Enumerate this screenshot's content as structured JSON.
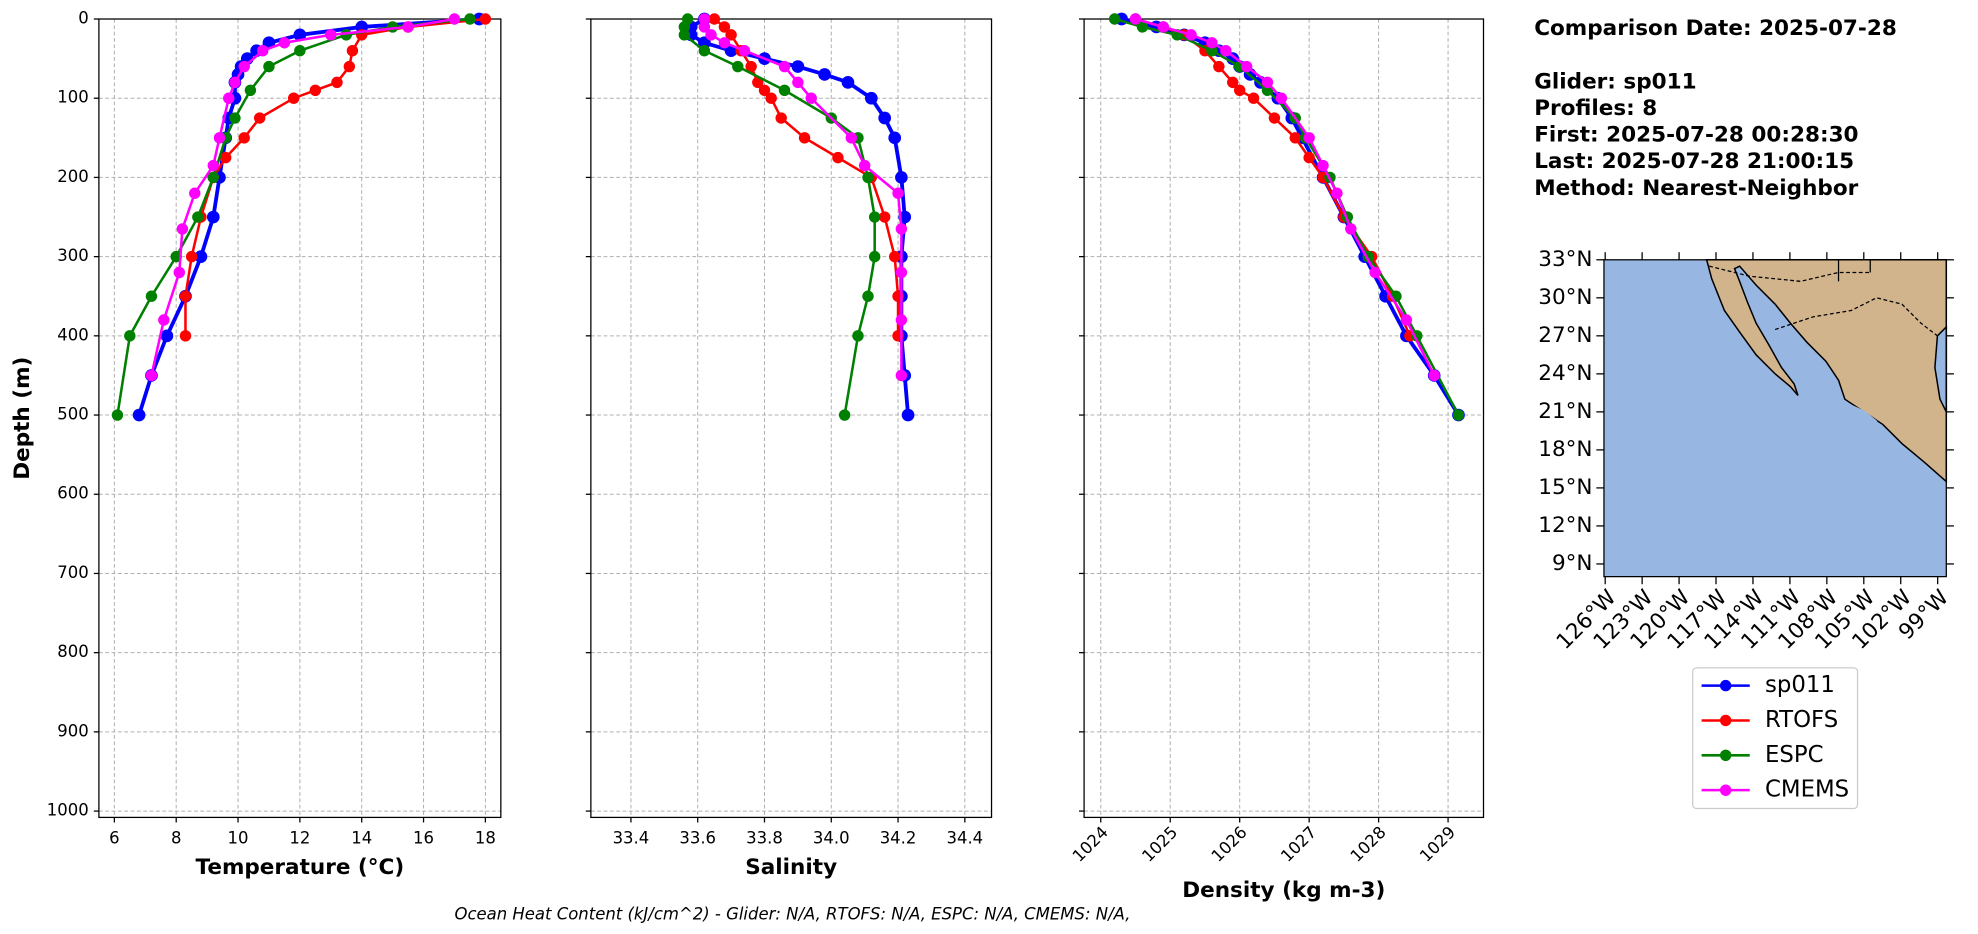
{
  "chart_data": [
    {
      "type": "profile",
      "xlabel": "Temperature (°C)",
      "ylabel": "Depth (m)",
      "xlim": [
        5.5,
        18.5
      ],
      "xticks": [
        6,
        8,
        10,
        12,
        14,
        16,
        18
      ],
      "ylim": [
        1008,
        0
      ],
      "yticks": [
        0,
        100,
        200,
        300,
        400,
        500,
        600,
        700,
        800,
        900,
        1000
      ],
      "grid": true,
      "series": [
        {
          "depth": [
            0,
            10,
            20,
            30,
            40,
            50,
            60,
            70,
            80,
            100,
            125,
            150,
            200,
            250,
            300,
            350,
            400,
            450,
            500
          ],
          "values": [
            17.8,
            14,
            12,
            11,
            10.6,
            10.3,
            10.1,
            10,
            9.9,
            9.9,
            9.7,
            9.6,
            9.4,
            9.2,
            8.8,
            8.3,
            7.7,
            7.2,
            6.8
          ]
        },
        {
          "depth": [
            0,
            10,
            20,
            40,
            60,
            80,
            90,
            100,
            125,
            150,
            175,
            200,
            250,
            300,
            350,
            400
          ],
          "values": [
            18,
            15.5,
            14,
            13.7,
            13.6,
            13.2,
            12.5,
            11.8,
            10.7,
            10.2,
            9.6,
            9.2,
            8.8,
            8.5,
            8.3,
            8.3
          ]
        },
        {
          "depth": [
            0,
            10,
            20,
            40,
            60,
            90,
            125,
            150,
            200,
            250,
            300,
            350,
            400,
            500
          ],
          "values": [
            17.5,
            15,
            13.5,
            12,
            11,
            10.4,
            9.9,
            9.6,
            9.2,
            8.7,
            8,
            7.2,
            6.5,
            6.1
          ]
        },
        {
          "depth": [
            0,
            10,
            20,
            30,
            40,
            60,
            80,
            100,
            150,
            185,
            220,
            265,
            320,
            380,
            450
          ],
          "values": [
            17,
            15.5,
            13,
            11.5,
            10.8,
            10.2,
            9.9,
            9.7,
            9.4,
            9.2,
            8.6,
            8.2,
            8.1,
            7.6,
            7.2
          ]
        }
      ]
    },
    {
      "type": "profile",
      "xlabel": "Salinity",
      "xlim": [
        33.28,
        34.48
      ],
      "xticks": [
        33.4,
        33.6,
        33.8,
        {
          "value": 34,
          "label": "34.0"
        },
        34.2,
        34.4
      ],
      "ylim": [
        1008,
        0
      ],
      "yticks": [
        0,
        100,
        200,
        300,
        400,
        500,
        600,
        700,
        800,
        900,
        1000
      ],
      "grid": true,
      "series": [
        {
          "depth": [
            0,
            10,
            20,
            30,
            40,
            50,
            60,
            70,
            80,
            100,
            125,
            150,
            200,
            250,
            300,
            350,
            400,
            450,
            500
          ],
          "values": [
            33.62,
            33.58,
            33.58,
            33.62,
            33.7,
            33.8,
            33.9,
            33.98,
            34.05,
            34.12,
            34.16,
            34.19,
            34.21,
            34.22,
            34.21,
            34.21,
            34.21,
            34.22,
            34.23
          ]
        },
        {
          "depth": [
            0,
            10,
            20,
            40,
            60,
            80,
            90,
            100,
            125,
            150,
            175,
            200,
            250,
            300,
            350,
            400
          ],
          "values": [
            33.65,
            33.68,
            33.7,
            33.73,
            33.76,
            33.78,
            33.8,
            33.82,
            33.85,
            33.92,
            34.02,
            34.12,
            34.16,
            34.19,
            34.2,
            34.2
          ]
        },
        {
          "depth": [
            0,
            10,
            20,
            40,
            60,
            90,
            125,
            150,
            200,
            250,
            300,
            350,
            400,
            500
          ],
          "values": [
            33.57,
            33.56,
            33.56,
            33.62,
            33.72,
            33.86,
            34.0,
            34.08,
            34.11,
            34.13,
            34.13,
            34.11,
            34.08,
            34.04
          ]
        },
        {
          "depth": [
            0,
            10,
            20,
            30,
            40,
            60,
            80,
            100,
            150,
            185,
            220,
            265,
            320,
            380,
            450
          ],
          "values": [
            33.62,
            33.62,
            33.64,
            33.68,
            33.74,
            33.86,
            33.9,
            33.94,
            34.06,
            34.1,
            34.2,
            34.21,
            34.21,
            34.21,
            34.21
          ]
        }
      ]
    },
    {
      "type": "profile",
      "xlabel": "Density (kg m-3)",
      "xtick_rotation": 45,
      "xlim": [
        1023.76,
        1029.51
      ],
      "xticks": [
        1024,
        1025,
        1026,
        1027,
        1028,
        1029
      ],
      "ylim": [
        1008,
        0
      ],
      "yticks": [
        0,
        100,
        200,
        300,
        400,
        500,
        600,
        700,
        800,
        900,
        1000
      ],
      "grid": true,
      "series": [
        {
          "depth": [
            0,
            10,
            20,
            30,
            40,
            50,
            60,
            70,
            80,
            100,
            125,
            150,
            200,
            250,
            300,
            350,
            400,
            450,
            500
          ],
          "values": [
            1024.3,
            1024.8,
            1025.2,
            1025.5,
            1025.7,
            1025.9,
            1026.0,
            1026.15,
            1026.3,
            1026.55,
            1026.75,
            1026.9,
            1027.2,
            1027.5,
            1027.8,
            1028.1,
            1028.4,
            1028.8,
            1029.15
          ]
        },
        {
          "depth": [
            0,
            10,
            20,
            40,
            60,
            80,
            90,
            100,
            125,
            150,
            175,
            200,
            250,
            300,
            350,
            400
          ],
          "values": [
            1024.5,
            1024.9,
            1025.2,
            1025.5,
            1025.7,
            1025.9,
            1026.0,
            1026.2,
            1026.5,
            1026.8,
            1027.0,
            1027.2,
            1027.5,
            1027.9,
            1028.2,
            1028.45
          ]
        },
        {
          "depth": [
            0,
            10,
            20,
            40,
            60,
            90,
            125,
            150,
            200,
            250,
            300,
            350,
            400,
            500
          ],
          "values": [
            1024.2,
            1024.6,
            1025.1,
            1025.6,
            1026.0,
            1026.4,
            1026.8,
            1026.95,
            1027.3,
            1027.55,
            1027.85,
            1028.25,
            1028.55,
            1029.15
          ]
        },
        {
          "depth": [
            0,
            10,
            20,
            30,
            40,
            60,
            80,
            100,
            150,
            185,
            220,
            265,
            320,
            380,
            450
          ],
          "values": [
            1024.5,
            1024.9,
            1025.3,
            1025.6,
            1025.8,
            1026.1,
            1026.4,
            1026.6,
            1027.0,
            1027.2,
            1027.4,
            1027.6,
            1027.95,
            1028.4,
            1028.8
          ]
        }
      ]
    },
    {
      "type": "map",
      "xlim": [
        -126.1,
        -98.3
      ],
      "ylim": [
        8,
        33
      ],
      "xticks": [
        {
          "value": -126,
          "label": "126°W"
        },
        {
          "value": -123,
          "label": "123°W"
        },
        {
          "value": -120,
          "label": "120°W"
        },
        {
          "value": -117,
          "label": "117°W"
        },
        {
          "value": -114,
          "label": "114°W"
        },
        {
          "value": -111,
          "label": "111°W"
        },
        {
          "value": -108,
          "label": "108°W"
        },
        {
          "value": -105,
          "label": "105°W"
        },
        {
          "value": -102,
          "label": "102°W"
        },
        {
          "value": -99,
          "label": "99°W"
        }
      ],
      "yticks": [
        {
          "value": 33,
          "label": "33°N"
        },
        {
          "value": 30,
          "label": "30°N"
        },
        {
          "value": 27,
          "label": "27°N"
        },
        {
          "value": 24,
          "label": "24°N"
        },
        {
          "value": 21,
          "label": "21°N"
        },
        {
          "value": 18,
          "label": "18°N"
        },
        {
          "value": 15,
          "label": "15°N"
        },
        {
          "value": 12,
          "label": "12°N"
        },
        {
          "value": 9,
          "label": "9°N"
        }
      ]
    }
  ],
  "legend": {
    "entries": [
      {
        "name": "sp011",
        "color": "#0000ff"
      },
      {
        "name": "RTOFS",
        "color": "#ff0000"
      },
      {
        "name": "ESPC",
        "color": "#008000"
      },
      {
        "name": "CMEMS",
        "color": "#ff00ff"
      }
    ]
  },
  "info": [
    "Comparison Date: 2025-07-28",
    "Glider: sp011",
    "Profiles: 8",
    "First: 2025-07-28 00:28:30",
    "Last: 2025-07-28 21:00:15",
    "Method: Nearest-Neighbor"
  ],
  "footer": "Ocean Heat Content (kJ/cm^2) - Glider: N/A,  RTOFS: N/A,  ESPC: N/A,  CMEMS: N/A,"
}
